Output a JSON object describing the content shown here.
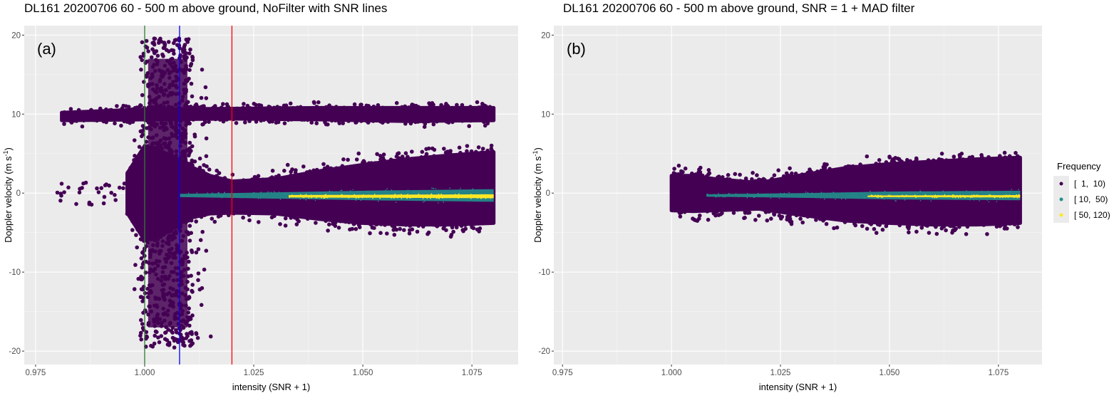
{
  "chart_data": [
    {
      "type": "scatter",
      "panel_label": "(a)",
      "title": "DL161 20200706 60 - 500 m above ground, NoFilter with SNR lines",
      "xlabel": "intensity (SNR + 1)",
      "ylabel": "Doppler velocity (m s",
      "ylabel_exp": "-1",
      "ylabel_end": ")",
      "xlim": [
        0.9724,
        1.0856
      ],
      "ylim": [
        -21.7,
        21.2
      ],
      "x_ticks": [
        0.975,
        1.0,
        1.025,
        1.05,
        1.075
      ],
      "x_tick_labels": [
        "0.975",
        "1.000",
        "1.025",
        "1.050",
        "1.075"
      ],
      "y_ticks": [
        -20,
        -10,
        0,
        10,
        20
      ],
      "y_tick_labels": [
        "-20",
        "-10",
        "0",
        "10",
        "20"
      ],
      "grid": true,
      "vlines": [
        {
          "x": 1.0,
          "color": "#2e7d32"
        },
        {
          "x": 1.008,
          "color": "#0000ff"
        },
        {
          "x": 1.02,
          "color": "#ff0000"
        }
      ],
      "regions": [
        {
          "name": "main-cluster",
          "freq": "[  1,  10)",
          "x": [
            0.996,
            1.0,
            1.005,
            1.01,
            1.015,
            1.02,
            1.03,
            1.04,
            1.05,
            1.06,
            1.07,
            1.08
          ],
          "upper": [
            2.5,
            6,
            5,
            3.5,
            2.2,
            1.5,
            1.8,
            2.8,
            3.6,
            4.3,
            4.8,
            5.2
          ],
          "lower": [
            -2.5,
            -6,
            -5,
            -3.2,
            -2.6,
            -2.5,
            -2.6,
            -3.3,
            -3.8,
            -4.0,
            -4.0,
            -3.8
          ]
        },
        {
          "name": "band-10",
          "freq": "[  1,  10)",
          "x": [
            0.981,
            1.0,
            1.02,
            1.04,
            1.06,
            1.08
          ],
          "upper": [
            10.2,
            10.6,
            10.7,
            10.8,
            10.8,
            10.8
          ],
          "lower": [
            9.2,
            9.3,
            9.4,
            9.3,
            9.1,
            9.2
          ]
        },
        {
          "name": "column",
          "freq": "[  1,  10)",
          "x": [
            0.999,
            1.011
          ],
          "upper": [
            19.6,
            19.6
          ],
          "lower": [
            -19.6,
            -19.6
          ]
        },
        {
          "name": "teal-band",
          "freq": "[ 10,  50)",
          "x": [
            1.008,
            1.03,
            1.05,
            1.08
          ],
          "center": -0.3,
          "halfwidth": [
            0.2,
            0.4,
            0.6,
            0.8
          ]
        },
        {
          "name": "yellow-band",
          "freq": "[ 50, 120)",
          "x": [
            1.033,
            1.08
          ],
          "center": -0.4,
          "halfwidth": [
            0.15,
            0.25
          ]
        }
      ]
    },
    {
      "type": "scatter",
      "panel_label": "(b)",
      "title": "DL161 20200706 60 - 500 m above ground, SNR = 1 + MAD filter",
      "xlabel": "intensity (SNR + 1)",
      "ylabel": "Doppler velocity (m s",
      "ylabel_exp": "-1",
      "ylabel_end": ")",
      "xlim": [
        0.973,
        1.085
      ],
      "ylim": [
        -21.7,
        21.2
      ],
      "x_ticks": [
        0.975,
        1.0,
        1.025,
        1.05,
        1.075
      ],
      "x_tick_labels": [
        "0.975",
        "1.000",
        "1.025",
        "1.050",
        "1.075"
      ],
      "y_ticks": [
        -20,
        -10,
        0,
        10,
        20
      ],
      "y_tick_labels": [
        "-20",
        "-10",
        "0",
        "10",
        "20"
      ],
      "grid": true,
      "vlines": [],
      "regions": [
        {
          "name": "main-cluster",
          "freq": "[  1,  10)",
          "x": [
            1.0,
            1.005,
            1.01,
            1.02,
            1.03,
            1.04,
            1.05,
            1.06,
            1.07,
            1.08
          ],
          "upper": [
            2.2,
            2.2,
            1.8,
            1.3,
            2.3,
            3.2,
            3.7,
            4.0,
            4.3,
            4.5
          ],
          "lower": [
            -2.2,
            -2.3,
            -2.2,
            -2.0,
            -2.8,
            -3.5,
            -3.8,
            -4.0,
            -4.0,
            -3.8
          ]
        },
        {
          "name": "teal-band",
          "freq": "[ 10,  50)",
          "x": [
            1.008,
            1.03,
            1.05,
            1.08
          ],
          "center": -0.3,
          "halfwidth": [
            0.15,
            0.3,
            0.5,
            0.6
          ]
        },
        {
          "name": "yellow-band",
          "freq": "[ 50, 120)",
          "x": [
            1.045,
            1.08
          ],
          "center": -0.4,
          "halfwidth": [
            0.1,
            0.15
          ]
        }
      ]
    }
  ],
  "legend": {
    "title": "Frequency",
    "placement": "right",
    "items": [
      {
        "label": "[  1,  10)",
        "color": "#440154"
      },
      {
        "label": "[ 10,  50)",
        "color": "#21908c"
      },
      {
        "label": "[ 50, 120)",
        "color": "#fde725"
      }
    ]
  }
}
